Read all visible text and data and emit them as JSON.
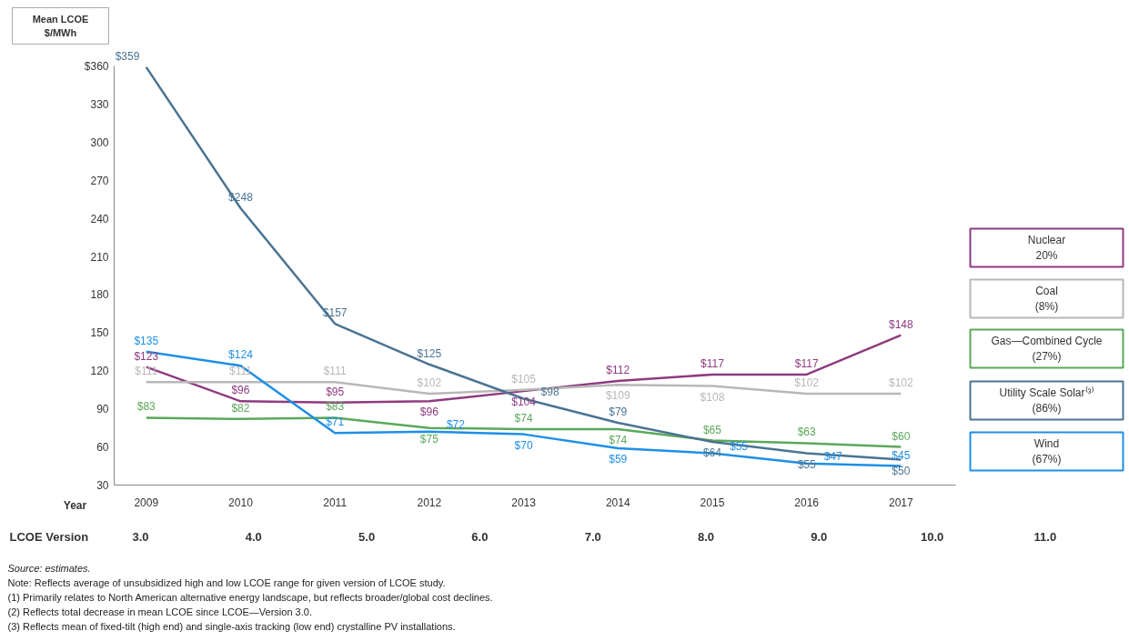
{
  "chart_data": {
    "type": "line",
    "ylabel": "Mean LCOE\n$/MWh",
    "xlabel": "Year",
    "categories": [
      "2009",
      "2010",
      "2011",
      "2012",
      "2013",
      "2014",
      "2015",
      "2016",
      "2017"
    ],
    "ylim": [
      30,
      360
    ],
    "yticks": [
      30,
      60,
      90,
      120,
      150,
      180,
      210,
      240,
      270,
      300,
      330,
      {
        "value": 360,
        "label": "$360"
      }
    ],
    "grid": false,
    "legend": "right",
    "marker": "none",
    "line_style": "solid",
    "series": [
      {
        "name": "Nuclear\n20%",
        "color": "#8e3a80",
        "values": [
          123,
          96,
          95,
          96,
          104,
          112,
          117,
          117,
          148
        ],
        "value_labels": [
          "$123",
          "$96",
          "$95",
          "$96",
          "$104",
          "$112",
          "$117",
          "$117",
          "$148"
        ]
      },
      {
        "name": "Coal\n(8%)",
        "color": "#b8b8b8",
        "values": [
          111,
          111,
          111,
          102,
          105,
          109,
          108,
          102,
          102
        ],
        "value_labels": [
          "$111",
          "$111",
          "$111",
          "$102",
          "$105",
          "$109",
          "$108",
          "$102",
          "$102"
        ]
      },
      {
        "name": "Gas—Combined Cycle\n(27%)",
        "color": "#5aa85a",
        "values": [
          83,
          82,
          83,
          75,
          74,
          74,
          65,
          63,
          60
        ],
        "value_labels": [
          "$83",
          "$82",
          "$83",
          "$75",
          "$74",
          "$74",
          "$65",
          "$63",
          "$60"
        ]
      },
      {
        "name": "Utility Scale Solar⁽³⁾\n(86%)",
        "color": "#4a7392",
        "values": [
          359,
          248,
          157,
          125,
          98,
          79,
          64,
          55,
          50
        ],
        "value_labels": [
          "$359",
          "$248",
          "$157",
          "$125",
          "$98",
          "$79",
          "$64",
          "$55",
          "$50"
        ]
      },
      {
        "name": "Wind\n(67%)",
        "color": "#1e8fe6",
        "values": [
          135,
          124,
          71,
          72,
          70,
          59,
          55,
          47,
          45
        ],
        "value_labels": [
          "$135",
          "$124",
          "$71",
          "$72",
          "$70",
          "$59",
          "$55",
          "$47",
          "$45"
        ]
      }
    ],
    "annotations": [
      "LCOE Version",
      "3.0",
      "4.0",
      "5.0",
      "6.0",
      "7.0",
      "8.0",
      "9.0",
      "10.0",
      "11.0",
      "Source: estimates.",
      "Note:    Reflects average of unsubsidized high and low LCOE range for given version of LCOE study.",
      "(1)        Primarily relates to North American alternative energy landscape, but reflects broader/global cost declines.",
      "(2)        Reflects total decrease in mean LCOE since LCOE—Version 3.0.",
      "(3)        Reflects mean of fixed-tilt (high end) and single-axis tracking (low end) crystalline PV installations."
    ]
  }
}
